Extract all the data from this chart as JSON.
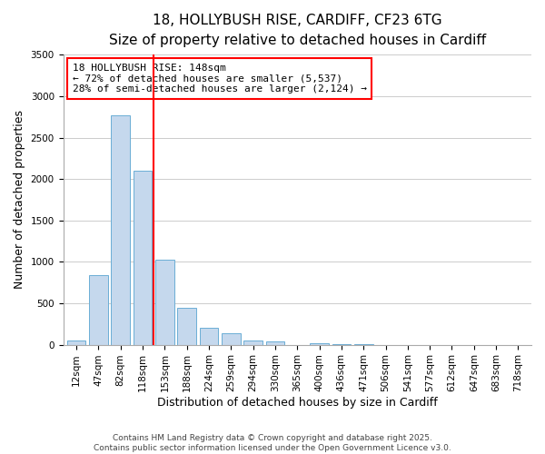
{
  "title_line1": "18, HOLLYBUSH RISE, CARDIFF, CF23 6TG",
  "title_line2": "Size of property relative to detached houses in Cardiff",
  "xlabel": "Distribution of detached houses by size in Cardiff",
  "ylabel": "Number of detached properties",
  "bar_labels": [
    "12sqm",
    "47sqm",
    "82sqm",
    "118sqm",
    "153sqm",
    "188sqm",
    "224sqm",
    "259sqm",
    "294sqm",
    "330sqm",
    "365sqm",
    "400sqm",
    "436sqm",
    "471sqm",
    "506sqm",
    "541sqm",
    "577sqm",
    "612sqm",
    "647sqm",
    "683sqm",
    "718sqm"
  ],
  "bar_values": [
    55,
    840,
    2770,
    2100,
    1030,
    450,
    200,
    140,
    55,
    40,
    0,
    20,
    5,
    2,
    0,
    0,
    0,
    0,
    0,
    0,
    0
  ],
  "bar_color": "#c5d8ed",
  "bar_edge_color": "#6baed6",
  "vline_x": 3.5,
  "vline_color": "red",
  "annotation_line1": "18 HOLLYBUSH RISE: 148sqm",
  "annotation_line2": "← 72% of detached houses are smaller (5,537)",
  "annotation_line3": "28% of semi-detached houses are larger (2,124) →",
  "annotation_box_facecolor": "white",
  "annotation_box_edgecolor": "red",
  "ylim": [
    0,
    3500
  ],
  "yticks": [
    0,
    500,
    1000,
    1500,
    2000,
    2500,
    3000,
    3500
  ],
  "grid_color": "#cccccc",
  "background_color": "white",
  "footnote_line1": "Contains HM Land Registry data © Crown copyright and database right 2025.",
  "footnote_line2": "Contains public sector information licensed under the Open Government Licence v3.0.",
  "title_fontsize": 11,
  "subtitle_fontsize": 9.5,
  "axis_label_fontsize": 9,
  "tick_fontsize": 7.5,
  "annotation_fontsize": 8,
  "footnote_fontsize": 6.5
}
